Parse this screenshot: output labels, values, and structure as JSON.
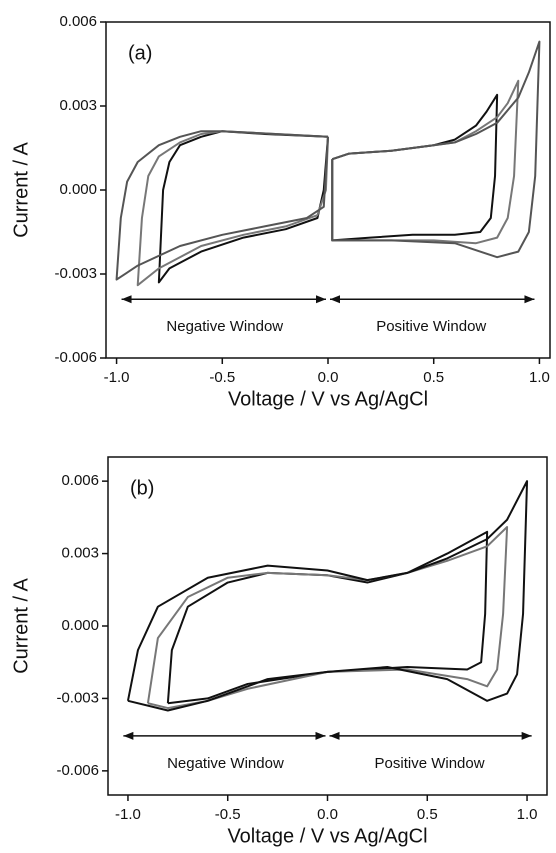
{
  "chart_data": [
    {
      "type": "line",
      "label": "(a)",
      "xlabel": "Voltage / V vs Ag/AgCl",
      "ylabel": "Current / A",
      "annotations": [
        "Negative Window",
        "Positive Window"
      ],
      "xlim": [
        -1.05,
        1.05
      ],
      "ylim": [
        -0.006,
        0.006
      ],
      "xticks": [
        {
          "value": -1,
          "label": "-1.0"
        },
        -0.5,
        {
          "value": 0,
          "label": "0.0"
        },
        0.5,
        {
          "value": 1,
          "label": "1.0"
        }
      ],
      "yticks": [
        -0.006,
        -0.003,
        {
          "value": 0,
          "label": "0.000"
        },
        0.003,
        0.006
      ],
      "series": [
        {
          "color": "#111111",
          "x": [
            0,
            -0.3,
            -0.5,
            -0.6,
            -0.7,
            -0.75,
            -0.78,
            -0.8,
            -0.75,
            -0.6,
            -0.4,
            -0.2,
            -0.05,
            -0.02,
            0
          ],
          "values": [
            0.0019,
            0.002,
            0.0021,
            0.0019,
            0.0016,
            0.001,
            0,
            -0.0033,
            -0.0028,
            -0.0022,
            -0.0017,
            -0.0014,
            -0.001,
            0,
            0.0019
          ]
        },
        {
          "color": "#777777",
          "x": [
            0,
            -0.5,
            -0.6,
            -0.7,
            -0.8,
            -0.85,
            -0.88,
            -0.9,
            -0.8,
            -0.6,
            -0.4,
            -0.2,
            -0.05,
            -0.01,
            0
          ],
          "values": [
            0.0019,
            0.0021,
            0.002,
            0.0017,
            0.0012,
            0.0005,
            -0.001,
            -0.0034,
            -0.0028,
            -0.002,
            -0.0016,
            -0.0013,
            -0.0009,
            0,
            0.0019
          ]
        },
        {
          "color": "#555555",
          "x": [
            0,
            -0.5,
            -0.6,
            -0.7,
            -0.8,
            -0.9,
            -0.95,
            -0.98,
            -1,
            -0.9,
            -0.7,
            -0.5,
            -0.3,
            -0.1,
            -0.02,
            0
          ],
          "values": [
            0.0019,
            0.0021,
            0.0021,
            0.0019,
            0.0016,
            0.001,
            0.0003,
            -0.001,
            -0.0032,
            -0.0027,
            -0.002,
            -0.0016,
            -0.0013,
            -0.001,
            -0.0006,
            0.0019
          ]
        },
        {
          "color": "#111111",
          "x": [
            0.02,
            0.1,
            0.3,
            0.5,
            0.6,
            0.7,
            0.75,
            0.8,
            0.79,
            0.77,
            0.72,
            0.6,
            0.4,
            0.2,
            0.02,
            0.02
          ],
          "values": [
            0.0011,
            0.0013,
            0.0014,
            0.0016,
            0.0018,
            0.0023,
            0.0028,
            0.0034,
            0.0005,
            -0.001,
            -0.0015,
            -0.0016,
            -0.0016,
            -0.0017,
            -0.0018,
            0.0011
          ]
        },
        {
          "color": "#777777",
          "x": [
            0.02,
            0.1,
            0.3,
            0.5,
            0.6,
            0.7,
            0.8,
            0.85,
            0.9,
            0.88,
            0.85,
            0.8,
            0.7,
            0.5,
            0.2,
            0.02,
            0.02
          ],
          "values": [
            0.0011,
            0.0013,
            0.0014,
            0.0016,
            0.0017,
            0.0021,
            0.0026,
            0.0031,
            0.0039,
            0.0005,
            -0.001,
            -0.0017,
            -0.0019,
            -0.0018,
            -0.0018,
            -0.0018,
            0.0011
          ]
        },
        {
          "color": "#555555",
          "x": [
            0.02,
            0.1,
            0.3,
            0.5,
            0.6,
            0.7,
            0.8,
            0.9,
            0.95,
            1,
            0.98,
            0.95,
            0.9,
            0.8,
            0.6,
            0.3,
            0.02,
            0.02
          ],
          "values": [
            0.0011,
            0.0013,
            0.0014,
            0.0016,
            0.0017,
            0.002,
            0.0024,
            0.0033,
            0.0042,
            0.0053,
            0.0005,
            -0.0015,
            -0.0022,
            -0.0024,
            -0.0019,
            -0.0018,
            -0.0018,
            0.0011
          ]
        }
      ]
    },
    {
      "type": "line",
      "label": "(b)",
      "xlabel": "Voltage / V vs Ag/AgCl",
      "ylabel": "Current / A",
      "annotations": [
        "Negative Window",
        "Positive Window"
      ],
      "xlim": [
        -1.1,
        1.1
      ],
      "ylim": [
        -0.007,
        0.007
      ],
      "xticks": [
        {
          "value": -1,
          "label": "-1.0"
        },
        -0.5,
        {
          "value": 0,
          "label": "0.0"
        },
        0.5,
        {
          "value": 1,
          "label": "1.0"
        }
      ],
      "yticks": [
        -0.006,
        -0.003,
        {
          "value": 0,
          "label": "0.000"
        },
        0.003,
        0.006
      ],
      "series": [
        {
          "color": "#111111",
          "x": [
            -0.8,
            -0.78,
            -0.7,
            -0.5,
            -0.3,
            0,
            0.2,
            0.4,
            0.6,
            0.8,
            0.79,
            0.77,
            0.7,
            0.4,
            0,
            -0.4,
            -0.6,
            -0.8
          ],
          "values": [
            -0.0032,
            -0.001,
            0.0008,
            0.0018,
            0.0022,
            0.0021,
            0.0018,
            0.0022,
            0.003,
            0.0039,
            0.0005,
            -0.0015,
            -0.0018,
            -0.0017,
            -0.0019,
            -0.0024,
            -0.003,
            -0.0032
          ]
        },
        {
          "color": "#777777",
          "x": [
            -0.9,
            -0.85,
            -0.7,
            -0.5,
            -0.3,
            0,
            0.2,
            0.4,
            0.6,
            0.8,
            0.9,
            0.88,
            0.85,
            0.8,
            0.7,
            0.4,
            0,
            -0.4,
            -0.6,
            -0.8,
            -0.9
          ],
          "values": [
            -0.0032,
            -0.0005,
            0.0012,
            0.002,
            0.0022,
            0.0021,
            0.0019,
            0.0022,
            0.0027,
            0.0033,
            0.0041,
            0.0005,
            -0.0018,
            -0.0025,
            -0.0022,
            -0.0018,
            -0.0019,
            -0.0026,
            -0.0031,
            -0.0034,
            -0.0032
          ]
        },
        {
          "color": "#111111",
          "x": [
            -1,
            -0.95,
            -0.85,
            -0.6,
            -0.3,
            0,
            0.2,
            0.4,
            0.6,
            0.8,
            0.9,
            1,
            0.98,
            0.95,
            0.9,
            0.8,
            0.6,
            0.3,
            0,
            -0.3,
            -0.6,
            -0.8,
            -1
          ],
          "values": [
            -0.0031,
            -0.001,
            0.0008,
            0.002,
            0.0025,
            0.0023,
            0.0019,
            0.0022,
            0.0028,
            0.0036,
            0.0044,
            0.006,
            0.0005,
            -0.002,
            -0.0028,
            -0.0031,
            -0.0022,
            -0.0017,
            -0.0019,
            -0.0022,
            -0.0031,
            -0.0035,
            -0.0031
          ]
        }
      ]
    }
  ]
}
